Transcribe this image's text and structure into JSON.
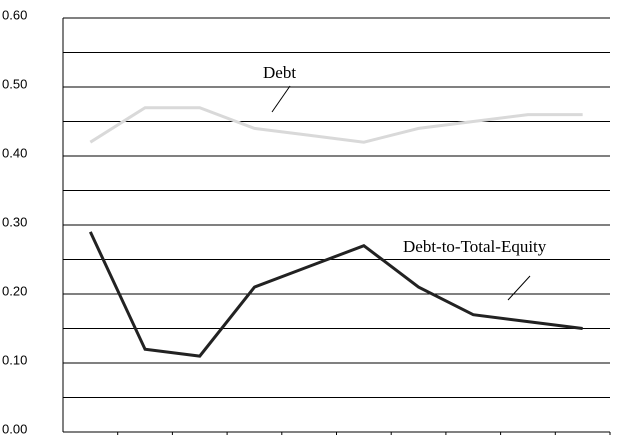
{
  "chart_data": {
    "type": "line",
    "categories": [
      null,
      null,
      null,
      null,
      null,
      null,
      null,
      null,
      null,
      null
    ],
    "series": [
      {
        "name": "Debt",
        "color": "#d9d9d9",
        "values": [
          0.42,
          0.47,
          0.47,
          0.44,
          0.43,
          0.42,
          0.44,
          0.45,
          0.46,
          0.46
        ]
      },
      {
        "name": "Debt-to-Total-Equity",
        "color": "#222222",
        "values": [
          0.29,
          0.12,
          0.11,
          0.21,
          0.24,
          0.27,
          0.21,
          0.17,
          0.16,
          0.15
        ]
      }
    ],
    "ylim": [
      0,
      0.6
    ],
    "yticks": [
      {
        "value": 0,
        "label": "0.00"
      },
      {
        "value": 0.1,
        "label": "0.10"
      },
      {
        "value": 0.2,
        "label": "0.20"
      },
      {
        "value": 0.3,
        "label": "0.30"
      },
      {
        "value": 0.4,
        "label": "0.40"
      },
      {
        "value": 0.5,
        "label": "0.50"
      },
      {
        "value": 0.6,
        "label": "0.60"
      }
    ],
    "yminorticks": [
      0.05,
      0.15,
      0.25,
      0.35,
      0.45,
      0.55
    ],
    "grid": true
  }
}
